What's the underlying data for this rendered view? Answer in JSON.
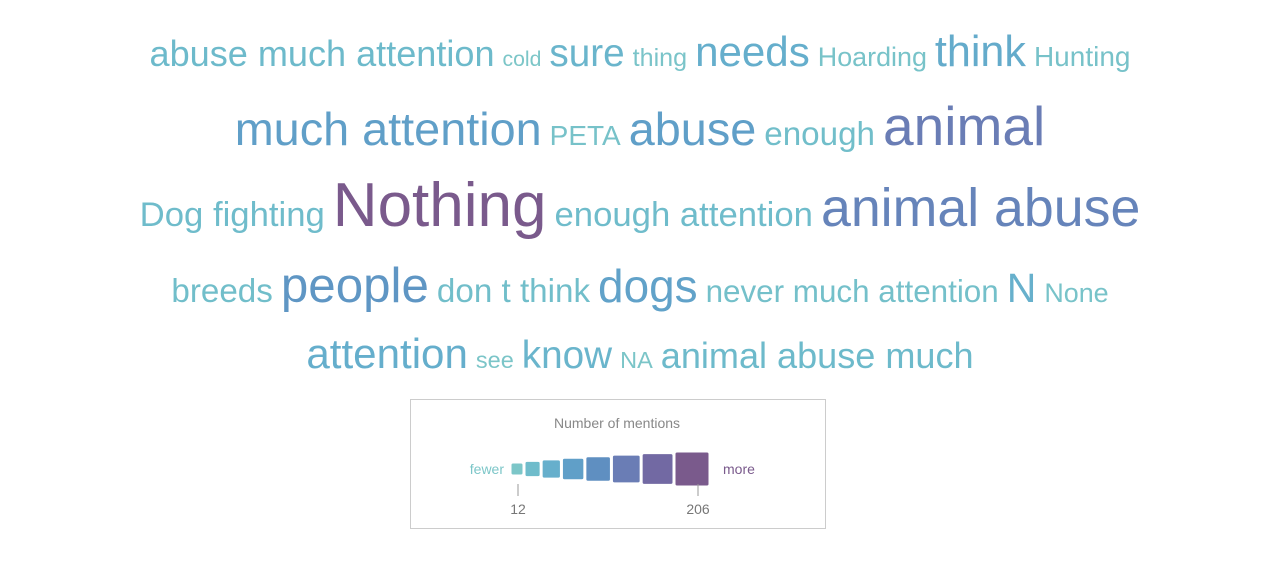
{
  "chart_data": {
    "type": "wordcloud",
    "words": [
      "abuse much attention",
      "cold",
      "sure",
      "thing",
      "needs",
      "Hoarding",
      "think",
      "Hunting",
      "much attention",
      "PETA",
      "abuse",
      "enough",
      "animal",
      "Dog fighting",
      "Nothing",
      "enough attention",
      "animal abuse",
      "breeds",
      "people",
      "don t think",
      "dogs",
      "never much attention",
      "N",
      "None",
      "attention",
      "see",
      "know",
      "NA",
      "animal abuse much"
    ],
    "values": [
      45,
      13,
      55,
      17,
      70,
      20,
      75,
      22,
      95,
      22,
      95,
      35,
      150,
      40,
      206,
      40,
      140,
      35,
      110,
      35,
      90,
      30,
      65,
      20,
      70,
      15,
      55,
      15,
      45
    ],
    "legend": {
      "title": "Number of mentions",
      "low_label": "fewer",
      "high_label": "more",
      "ticks": [
        12,
        206
      ],
      "colors": [
        "#7cc6c8",
        "#6fbccb",
        "#66afcc",
        "#609fc8",
        "#5f8fc1",
        "#6a7db5",
        "#7269a3",
        "#7a5a8c"
      ]
    }
  }
}
